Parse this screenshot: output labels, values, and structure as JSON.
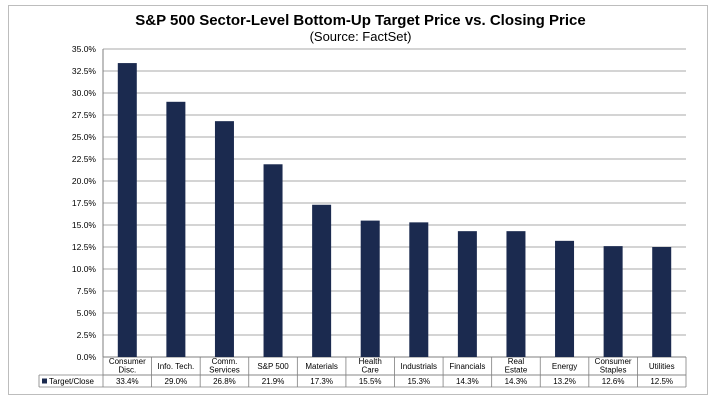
{
  "chart_data": {
    "type": "bar",
    "title": "S&P 500 Sector-Level Bottom-Up Target Price vs. Closing Price",
    "subtitle": "(Source: FactSet)",
    "categories": [
      "Consumer Disc.",
      "Info. Tech.",
      "Comm. Services",
      "S&P 500",
      "Materials",
      "Health Care",
      "Industrials",
      "Financials",
      "Real Estate",
      "Energy",
      "Consumer Staples",
      "Utilities"
    ],
    "category_lines": [
      [
        "Consumer",
        "Disc."
      ],
      [
        "Info. Tech."
      ],
      [
        "Comm.",
        "Services"
      ],
      [
        "S&P 500"
      ],
      [
        "Materials"
      ],
      [
        "Health",
        "Care"
      ],
      [
        "Industrials"
      ],
      [
        "Financials"
      ],
      [
        "Real",
        "Estate"
      ],
      [
        "Energy"
      ],
      [
        "Consumer",
        "Staples"
      ],
      [
        "Utilities"
      ]
    ],
    "series": [
      {
        "name": "Target/Close",
        "values": [
          33.4,
          29.0,
          26.8,
          21.9,
          17.3,
          15.5,
          15.3,
          14.3,
          14.3,
          13.2,
          12.6,
          12.5
        ],
        "labels": [
          "33.4%",
          "29.0%",
          "26.8%",
          "21.9%",
          "17.3%",
          "15.5%",
          "15.3%",
          "14.3%",
          "14.3%",
          "13.2%",
          "12.6%",
          "12.5%"
        ]
      }
    ],
    "ylim": [
      0,
      35
    ],
    "yticks": [
      "0.0%",
      "2.5%",
      "5.0%",
      "7.5%",
      "10.0%",
      "12.5%",
      "15.0%",
      "17.5%",
      "20.0%",
      "22.5%",
      "25.0%",
      "27.5%",
      "30.0%",
      "32.5%",
      "35.0%"
    ],
    "ytick_values": [
      0,
      2.5,
      5,
      7.5,
      10,
      12.5,
      15,
      17.5,
      20,
      22.5,
      25,
      27.5,
      30,
      32.5,
      35
    ],
    "grid": true,
    "legend": "data-table-left",
    "colors": {
      "bar": "#1b2a4f",
      "grid": "#8c8c8c",
      "axis": "#7f7f7f"
    }
  }
}
